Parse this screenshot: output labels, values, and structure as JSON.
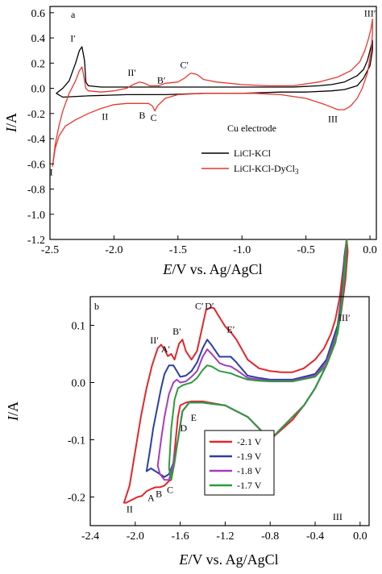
{
  "chart_data": [
    {
      "type": "line",
      "panel_label": "a",
      "xlabel_italic": "E",
      "xlabel_rest": "/V vs. Ag/AgCl",
      "ylabel_italic": "I",
      "ylabel_rest": "/A",
      "xlim": [
        -2.5,
        0.05
      ],
      "ylim": [
        -1.2,
        0.65
      ],
      "xticks": [
        -2.5,
        -2.0,
        -1.5,
        -1.0,
        -0.5,
        0.0
      ],
      "xtick_labels": [
        "-2.5",
        "-2.0",
        "-1.5",
        "-1.0",
        "-0.5",
        "0.0"
      ],
      "yticks": [
        -1.2,
        -1.0,
        -0.8,
        -0.6,
        -0.4,
        -0.2,
        0.0,
        0.2,
        0.4,
        0.6
      ],
      "ytick_labels": [
        "-1.2",
        "-1.0",
        "-0.8",
        "-0.6",
        "-0.4",
        "-0.2",
        "0.0",
        "0.2",
        "0.4",
        "0.6"
      ],
      "legend_title": "Cu electrode",
      "legend_position": "middle-right",
      "series": [
        {
          "name": "LiCl-KCl",
          "color": "#000000",
          "x": [
            -2.45,
            -2.4,
            -2.35,
            -2.3,
            -2.27,
            -2.25,
            -2.23,
            -2.22,
            -2.2,
            -2.1,
            -1.8,
            -1.5,
            -1.2,
            -1.0,
            -0.8,
            -0.6,
            -0.4,
            -0.3,
            -0.2,
            -0.1,
            -0.05,
            -0.02,
            0.0,
            0.02,
            0.02,
            0.0,
            -0.05,
            -0.1,
            -0.2,
            -0.3,
            -0.5,
            -0.7,
            -1.0,
            -1.3,
            -1.6,
            -1.9,
            -2.2,
            -2.4,
            -2.45
          ],
          "y": [
            -0.04,
            0.0,
            0.06,
            0.2,
            0.3,
            0.33,
            0.22,
            0.05,
            0.02,
            0.01,
            0.01,
            0.01,
            0.01,
            0.01,
            0.01,
            0.01,
            0.02,
            0.03,
            0.05,
            0.1,
            0.15,
            0.22,
            0.3,
            0.38,
            0.3,
            0.18,
            0.08,
            0.02,
            -0.01,
            -0.02,
            -0.03,
            -0.03,
            -0.04,
            -0.04,
            -0.05,
            -0.05,
            -0.06,
            -0.07,
            -0.04
          ]
        },
        {
          "name": "LiCl-KCl-DyCl",
          "name_subscript": "3",
          "color": "#e8372d",
          "x": [
            -2.48,
            -2.46,
            -2.43,
            -2.4,
            -2.35,
            -2.3,
            -2.27,
            -2.25,
            -2.24,
            -2.22,
            -2.2,
            -2.1,
            -2.0,
            -1.9,
            -1.85,
            -1.8,
            -1.76,
            -1.72,
            -1.65,
            -1.6,
            -1.5,
            -1.45,
            -1.4,
            -1.35,
            -1.3,
            -1.2,
            -1.0,
            -0.8,
            -0.6,
            -0.4,
            -0.25,
            -0.15,
            -0.08,
            -0.04,
            -0.01,
            0.01,
            0.02,
            0.02,
            0.01,
            -0.02,
            -0.06,
            -0.1,
            -0.15,
            -0.2,
            -0.25,
            -0.35,
            -0.5,
            -0.7,
            -0.9,
            -1.1,
            -1.3,
            -1.5,
            -1.6,
            -1.66,
            -1.68,
            -1.7,
            -1.73,
            -1.8,
            -1.9,
            -2.0,
            -2.1,
            -2.2,
            -2.3,
            -2.38,
            -2.43,
            -2.46,
            -2.48
          ],
          "y": [
            -0.62,
            -0.45,
            -0.3,
            -0.18,
            -0.04,
            0.06,
            0.14,
            0.17,
            0.12,
            0.0,
            -0.02,
            -0.03,
            -0.02,
            0.0,
            0.03,
            0.05,
            0.04,
            0.02,
            0.02,
            0.04,
            0.05,
            0.08,
            0.12,
            0.11,
            0.07,
            0.05,
            0.03,
            0.02,
            0.02,
            0.05,
            0.09,
            0.14,
            0.21,
            0.3,
            0.4,
            0.48,
            0.55,
            0.44,
            0.3,
            0.12,
            0.0,
            -0.08,
            -0.14,
            -0.17,
            -0.17,
            -0.13,
            -0.08,
            -0.05,
            -0.04,
            -0.04,
            -0.04,
            -0.05,
            -0.08,
            -0.14,
            -0.18,
            -0.14,
            -0.12,
            -0.12,
            -0.12,
            -0.13,
            -0.16,
            -0.2,
            -0.25,
            -0.3,
            -0.38,
            -0.48,
            -0.62
          ]
        }
      ],
      "annotations": [
        {
          "text": "I′",
          "x": -2.32,
          "y": 0.37
        },
        {
          "text": "II′",
          "x": -1.86,
          "y": 0.1
        },
        {
          "text": "B′",
          "x": -1.63,
          "y": 0.04
        },
        {
          "text": "C′",
          "x": -1.45,
          "y": 0.16
        },
        {
          "text": "III′",
          "x": 0.0,
          "y": 0.57
        },
        {
          "text": "II",
          "x": -2.07,
          "y": -0.25
        },
        {
          "text": "B",
          "x": -1.78,
          "y": -0.24
        },
        {
          "text": "C",
          "x": -1.69,
          "y": -0.26
        },
        {
          "text": "III",
          "x": -0.29,
          "y": -0.27
        },
        {
          "text": "I",
          "x": -2.49,
          "y": -0.69
        }
      ]
    },
    {
      "type": "line",
      "panel_label": "b",
      "xlabel_italic": "E",
      "xlabel_rest": "/V vs. Ag/AgCl",
      "ylabel_italic": "I",
      "ylabel_rest": "/A",
      "xlim": [
        -2.4,
        0.08
      ],
      "ylim": [
        -0.25,
        0.15
      ],
      "xticks": [
        -2.4,
        -2.0,
        -1.6,
        -1.2,
        -0.8,
        -0.4,
        0.0
      ],
      "xtick_labels": [
        "-2.4",
        "-2.0",
        "-1.6",
        "-1.2",
        "-0.8",
        "-0.4",
        "0.0"
      ],
      "yticks": [
        -0.2,
        -0.1,
        0.0,
        0.1
      ],
      "ytick_labels": [
        "-0.2",
        "-0.1",
        "0.0",
        "0.1"
      ],
      "legend_position": "lower-center",
      "series": [
        {
          "name": "-2.1 V",
          "color": "#e3262b",
          "x": [
            -2.1,
            -2.05,
            -2.0,
            -1.95,
            -1.9,
            -1.85,
            -1.8,
            -1.77,
            -1.74,
            -1.71,
            -1.68,
            -1.65,
            -1.61,
            -1.58,
            -1.55,
            -1.5,
            -1.45,
            -1.4,
            -1.37,
            -1.33,
            -1.3,
            -1.26,
            -1.2,
            -1.15,
            -1.1,
            -1.0,
            -0.9,
            -0.8,
            -0.7,
            -0.6,
            -0.5,
            -0.4,
            -0.32,
            -0.26,
            -0.22,
            -0.18,
            -0.15,
            -0.12,
            -0.11,
            -0.13,
            -0.17,
            -0.22,
            -0.3,
            -0.4,
            -0.5,
            -0.6,
            -0.8,
            -1.0,
            -1.2,
            -1.4,
            -1.5,
            -1.55,
            -1.6,
            -1.62,
            -1.64,
            -1.66,
            -1.68,
            -1.7,
            -1.72,
            -1.74,
            -1.78,
            -1.82,
            -1.86,
            -1.9,
            -1.94,
            -1.98,
            -2.03,
            -2.08,
            -2.1
          ],
          "y": [
            -0.21,
            -0.18,
            -0.12,
            -0.06,
            -0.01,
            0.03,
            0.06,
            0.066,
            0.058,
            0.046,
            0.05,
            0.04,
            0.068,
            0.075,
            0.055,
            0.04,
            0.055,
            0.1,
            0.127,
            0.131,
            0.13,
            0.117,
            0.098,
            0.088,
            0.075,
            0.04,
            0.025,
            0.02,
            0.018,
            0.018,
            0.025,
            0.04,
            0.06,
            0.085,
            0.11,
            0.15,
            0.2,
            0.25,
            0.23,
            0.18,
            0.12,
            0.07,
            0.03,
            -0.01,
            -0.04,
            -0.065,
            -0.1,
            -0.06,
            -0.04,
            -0.033,
            -0.033,
            -0.035,
            -0.04,
            -0.06,
            -0.1,
            -0.14,
            -0.17,
            -0.172,
            -0.176,
            -0.18,
            -0.183,
            -0.183,
            -0.186,
            -0.19,
            -0.198,
            -0.2,
            -0.205,
            -0.21,
            -0.21
          ]
        },
        {
          "name": "-1.9 V",
          "color": "#2b3fa6",
          "x": [
            -1.9,
            -1.87,
            -1.84,
            -1.8,
            -1.77,
            -1.74,
            -1.7,
            -1.66,
            -1.63,
            -1.6,
            -1.55,
            -1.5,
            -1.45,
            -1.4,
            -1.36,
            -1.32,
            -1.25,
            -1.2,
            -1.15,
            -1.1,
            -1.0,
            -0.9,
            -0.8,
            -0.6,
            -0.4,
            -0.3,
            -0.2,
            -0.16,
            -0.14,
            -0.12,
            -0.13,
            -0.17,
            -0.22,
            -0.3,
            -0.4,
            -0.5,
            -0.6,
            -0.8,
            -1.0,
            -1.2,
            -1.4,
            -1.52,
            -1.58,
            -1.62,
            -1.66,
            -1.7,
            -1.74,
            -1.78,
            -1.82,
            -1.86,
            -1.9
          ],
          "y": [
            -0.155,
            -0.12,
            -0.08,
            -0.04,
            -0.01,
            0.015,
            0.03,
            0.03,
            0.02,
            0.01,
            0.012,
            0.02,
            0.035,
            0.06,
            0.075,
            0.065,
            0.045,
            0.045,
            0.045,
            0.035,
            0.012,
            0.008,
            0.005,
            0.005,
            0.015,
            0.04,
            0.1,
            0.16,
            0.22,
            0.25,
            0.2,
            0.13,
            0.07,
            0.03,
            -0.01,
            -0.04,
            -0.06,
            -0.1,
            -0.06,
            -0.04,
            -0.035,
            -0.035,
            -0.05,
            -0.1,
            -0.14,
            -0.16,
            -0.165,
            -0.16,
            -0.155,
            -0.15,
            -0.155
          ]
        },
        {
          "name": "-1.8 V",
          "color": "#a43dba",
          "x": [
            -1.8,
            -1.77,
            -1.74,
            -1.7,
            -1.66,
            -1.63,
            -1.6,
            -1.55,
            -1.5,
            -1.45,
            -1.4,
            -1.36,
            -1.32,
            -1.25,
            -1.2,
            -1.15,
            -1.1,
            -1.0,
            -0.9,
            -0.8,
            -0.6,
            -0.4,
            -0.3,
            -0.2,
            -0.16,
            -0.14,
            -0.12,
            -0.13,
            -0.17,
            -0.22,
            -0.3,
            -0.4,
            -0.5,
            -0.6,
            -0.8,
            -1.0,
            -1.2,
            -1.4,
            -1.52,
            -1.58,
            -1.62,
            -1.66,
            -1.7,
            -1.74,
            -1.78,
            -1.8
          ],
          "y": [
            -0.145,
            -0.1,
            -0.06,
            -0.02,
            0.0,
            0.005,
            0.0,
            0.002,
            0.01,
            0.02,
            0.045,
            0.058,
            0.05,
            0.034,
            0.03,
            0.028,
            0.022,
            0.008,
            0.005,
            0.003,
            0.003,
            0.012,
            0.035,
            0.09,
            0.15,
            0.21,
            0.25,
            0.2,
            0.13,
            0.07,
            0.03,
            -0.01,
            -0.04,
            -0.06,
            -0.1,
            -0.06,
            -0.04,
            -0.035,
            -0.035,
            -0.05,
            -0.1,
            -0.14,
            -0.17,
            -0.17,
            -0.16,
            -0.145
          ]
        },
        {
          "name": "-1.7 V",
          "color": "#2f9b3c",
          "x": [
            -1.7,
            -1.68,
            -1.65,
            -1.62,
            -1.58,
            -1.55,
            -1.5,
            -1.45,
            -1.4,
            -1.36,
            -1.32,
            -1.25,
            -1.2,
            -1.15,
            -1.1,
            -1.0,
            -0.9,
            -0.8,
            -0.6,
            -0.4,
            -0.3,
            -0.2,
            -0.16,
            -0.14,
            -0.12,
            -0.13,
            -0.17,
            -0.22,
            -0.3,
            -0.4,
            -0.5,
            -0.6,
            -0.8,
            -1.0,
            -1.2,
            -1.4,
            -1.52,
            -1.58,
            -1.62,
            -1.65,
            -1.68,
            -1.7
          ],
          "y": [
            -0.15,
            -0.08,
            -0.03,
            -0.01,
            -0.005,
            -0.003,
            0.0,
            0.008,
            0.022,
            0.03,
            0.028,
            0.02,
            0.018,
            0.016,
            0.012,
            0.005,
            0.003,
            0.002,
            0.002,
            0.01,
            0.03,
            0.085,
            0.14,
            0.2,
            0.25,
            0.2,
            0.13,
            0.07,
            0.03,
            -0.01,
            -0.04,
            -0.06,
            -0.1,
            -0.06,
            -0.04,
            -0.035,
            -0.035,
            -0.05,
            -0.1,
            -0.14,
            -0.17,
            -0.15
          ]
        }
      ],
      "annotations": [
        {
          "text": "II′",
          "x": -1.83,
          "y": 0.068
        },
        {
          "text": "A′",
          "x": -1.73,
          "y": 0.053
        },
        {
          "text": "B′",
          "x": -1.63,
          "y": 0.084
        },
        {
          "text": "C′",
          "x": -1.43,
          "y": 0.128
        },
        {
          "text": "D′",
          "x": -1.34,
          "y": 0.128
        },
        {
          "text": "E′",
          "x": -1.15,
          "y": 0.087
        },
        {
          "text": "III′",
          "x": -0.14,
          "y": 0.108
        },
        {
          "text": "E",
          "x": -1.48,
          "y": -0.067
        },
        {
          "text": "D",
          "x": -1.57,
          "y": -0.085
        },
        {
          "text": "A",
          "x": -1.86,
          "y": -0.207
        },
        {
          "text": "B",
          "x": -1.79,
          "y": -0.2
        },
        {
          "text": "C",
          "x": -1.69,
          "y": -0.193
        },
        {
          "text": "II",
          "x": -2.05,
          "y": -0.227
        },
        {
          "text": "III",
          "x": -0.2,
          "y": -0.24
        }
      ]
    }
  ]
}
